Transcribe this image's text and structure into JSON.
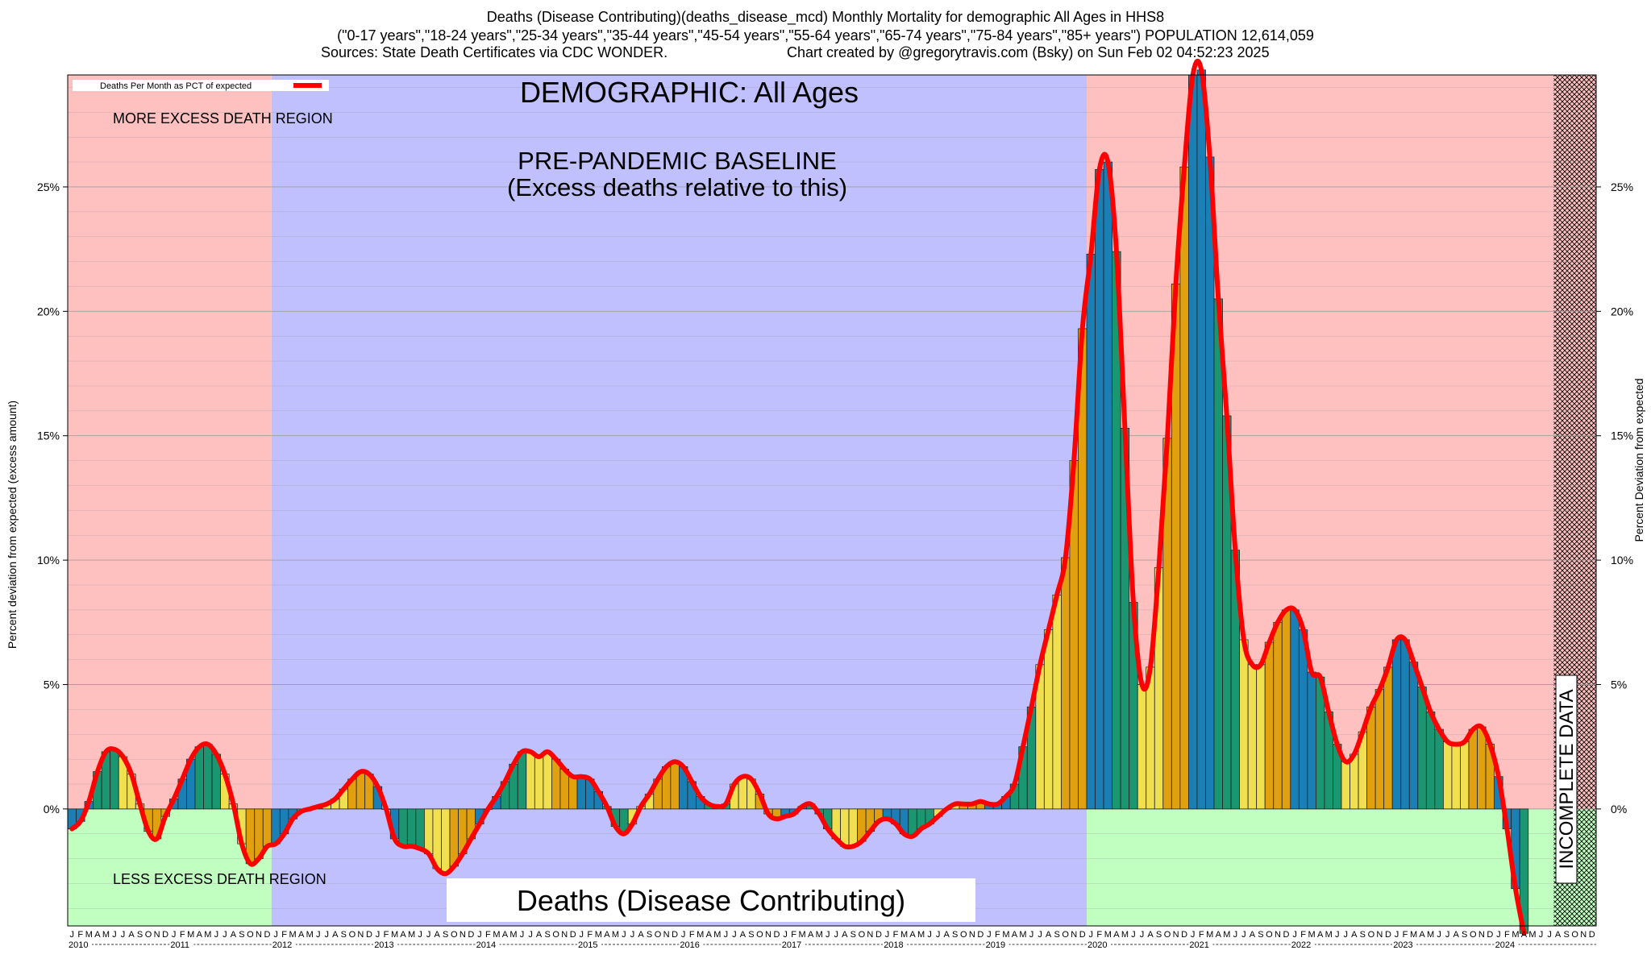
{
  "header": {
    "line1": "Deaths (Disease Contributing)(deaths_disease_mcd) Monthly Mortality for demographic All Ages in HHS8",
    "line2": "(\"0-17 years\",\"18-24 years\",\"25-34 years\",\"35-44 years\",\"45-54 years\",\"55-64 years\",\"65-74 years\",\"75-84 years\",\"85+ years\") POPULATION 12,614,059",
    "line3_left": "Sources: State Death Certificates via CDC WONDER.",
    "line3_right": "Chart created by @gregorytravis.com (Bsky) on Sun Feb 02 04:52:23 2025"
  },
  "annotations": {
    "demographic": "DEMOGRAPHIC: All Ages",
    "baseline_line1": "PRE-PANDEMIC BASELINE",
    "baseline_line2": "(Excess deaths relative to this)",
    "more_region": "MORE EXCESS DEATH REGION",
    "less_region": "LESS EXCESS DEATH REGION",
    "bottom_title": "Deaths (Disease Contributing)",
    "incomplete": "INCOMPLETE DATA"
  },
  "legend": {
    "label": "Deaths Per Month as PCT of expected",
    "color": "#ff0000"
  },
  "colors": {
    "more_region": "#ffc0c0",
    "baseline_region": "#c0c0ff",
    "less_region": "#c0ffc0",
    "line": "#ff0000",
    "bar_cycle": [
      "#1a7fb5",
      "#1a9670",
      "#f0e050",
      "#e0a010"
    ]
  },
  "chart_data": {
    "type": "bar",
    "x_start": "2010-01",
    "x_end": "2024-12",
    "ylabel_left": "Percent deviation from expected (excess amount)",
    "ylabel_right": "Percent Deviation from expected",
    "y_ticks": [
      "0%",
      "5%",
      "10%",
      "15%",
      "20%",
      "25%"
    ],
    "ylim": [
      -4.7,
      29.5
    ],
    "month_letters": [
      "J",
      "F",
      "M",
      "A",
      "M",
      "J",
      "J",
      "A",
      "S",
      "O",
      "N",
      "D"
    ],
    "years": [
      "2010",
      "2011",
      "2012",
      "2013",
      "2014",
      "2015",
      "2016",
      "2017",
      "2018",
      "2019",
      "2020",
      "2021",
      "2022",
      "2023",
      "2024"
    ],
    "baseline_period": [
      "2012-01",
      "2019-12"
    ],
    "incomplete_from": "2024-08",
    "series": [
      {
        "name": "Deaths Per Month as PCT of expected",
        "values": [
          -0.8,
          -0.5,
          0.3,
          1.5,
          2.3,
          2.4,
          2.1,
          1.4,
          0.2,
          -0.9,
          -1.2,
          -0.3,
          0.4,
          1.2,
          2.0,
          2.5,
          2.6,
          2.2,
          1.4,
          0.2,
          -1.4,
          -2.2,
          -2.0,
          -1.5,
          -1.4,
          -1.0,
          -0.4,
          -0.1,
          0.0,
          0.1,
          0.2,
          0.4,
          0.8,
          1.2,
          1.5,
          1.4,
          0.9,
          0.0,
          -1.2,
          -1.5,
          -1.5,
          -1.6,
          -1.8,
          -2.4,
          -2.6,
          -2.3,
          -1.8,
          -1.2,
          -0.6,
          0.0,
          0.5,
          1.1,
          1.8,
          2.3,
          2.3,
          2.1,
          2.3,
          2.0,
          1.6,
          1.3,
          1.3,
          1.2,
          0.7,
          0.1,
          -0.7,
          -1.0,
          -0.6,
          0.1,
          0.6,
          1.2,
          1.7,
          1.9,
          1.7,
          1.1,
          0.5,
          0.2,
          0.1,
          0.2,
          1.0,
          1.3,
          1.2,
          0.6,
          -0.2,
          -0.4,
          -0.3,
          -0.2,
          0.1,
          0.2,
          -0.2,
          -0.8,
          -1.2,
          -1.5,
          -1.5,
          -1.3,
          -0.9,
          -0.5,
          -0.4,
          -0.6,
          -1.0,
          -1.1,
          -0.8,
          -0.6,
          -0.3,
          0.0,
          0.2,
          0.2,
          0.2,
          0.3,
          0.2,
          0.2,
          0.5,
          1.0,
          2.5,
          4.1,
          5.8,
          7.2,
          8.6,
          10.1,
          14.0,
          19.3,
          22.3,
          25.7,
          26.0,
          22.4,
          15.3,
          8.3,
          5.0,
          5.7,
          9.7,
          14.9,
          21.1,
          25.8,
          29.5,
          29.7,
          26.2,
          20.5,
          15.8,
          10.4,
          6.8,
          5.8,
          5.8,
          6.7,
          7.5,
          8.0,
          8.0,
          7.2,
          5.5,
          5.3,
          3.9,
          2.6,
          1.9,
          2.2,
          3.1,
          4.1,
          4.8,
          5.7,
          6.8,
          6.8,
          5.9,
          4.9,
          3.9,
          3.2,
          2.7,
          2.6,
          2.7,
          3.2,
          3.3,
          2.6,
          1.3,
          -0.8,
          -3.2,
          -5.0
        ]
      }
    ]
  }
}
